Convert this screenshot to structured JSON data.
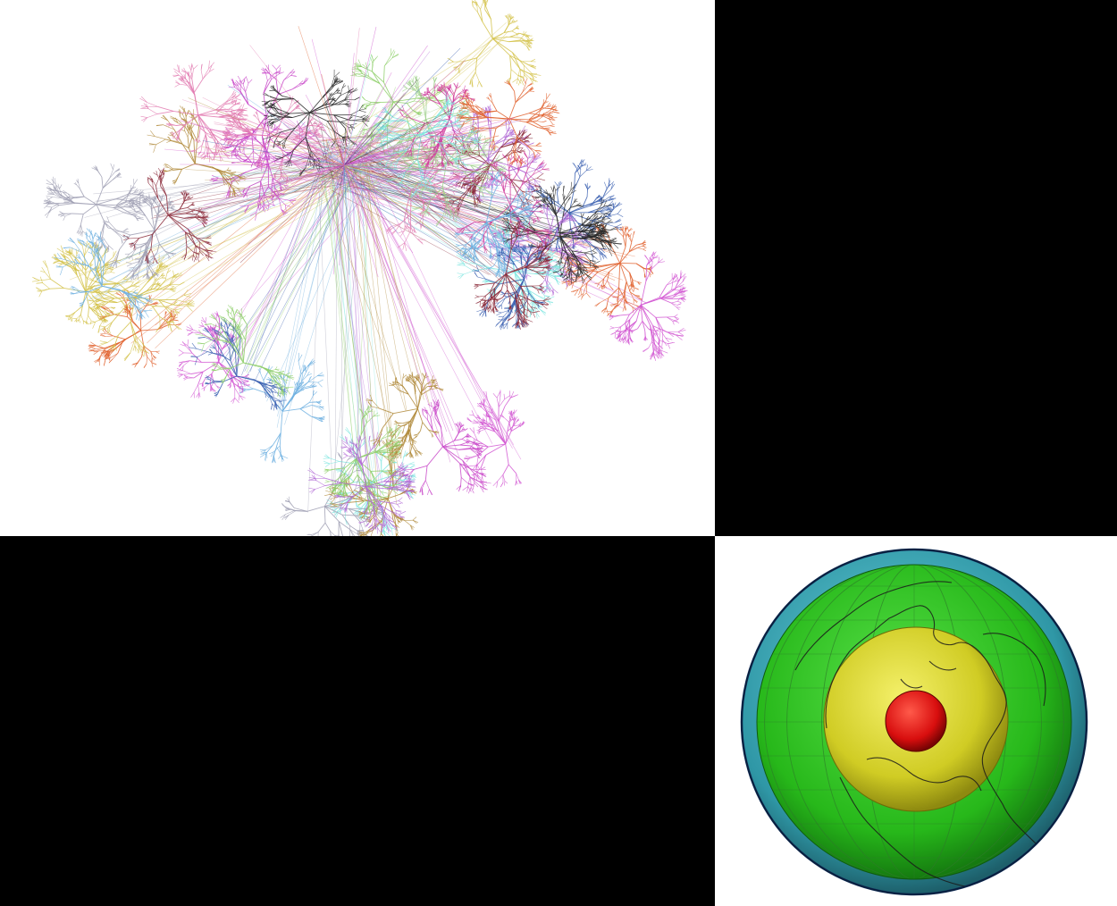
{
  "panels": {
    "network": {
      "name": "network-graph-visualization",
      "palette": [
        "#c845c8",
        "#e0622e",
        "#d257d2",
        "#b36bd6",
        "#8fcf6b",
        "#7fe6e0",
        "#3a5fb0",
        "#d4c24a",
        "#a0a0b4",
        "#8b2a3a",
        "#e27ab0",
        "#6fb0e0",
        "#2a2a2a",
        "#b08a3a",
        "#9fd08c",
        "#d03a9a"
      ],
      "hub_color": "#d050c8"
    },
    "globe": {
      "name": "earth-interior-layers",
      "layer_colors": {
        "crust_outer": "#3a9aa8",
        "mantle": "#29c21a",
        "outer_core": "#d8d82a",
        "inner_core": "#e01010",
        "coastline": "#1a1a1a",
        "graticule": "#2f7d2a"
      }
    }
  }
}
